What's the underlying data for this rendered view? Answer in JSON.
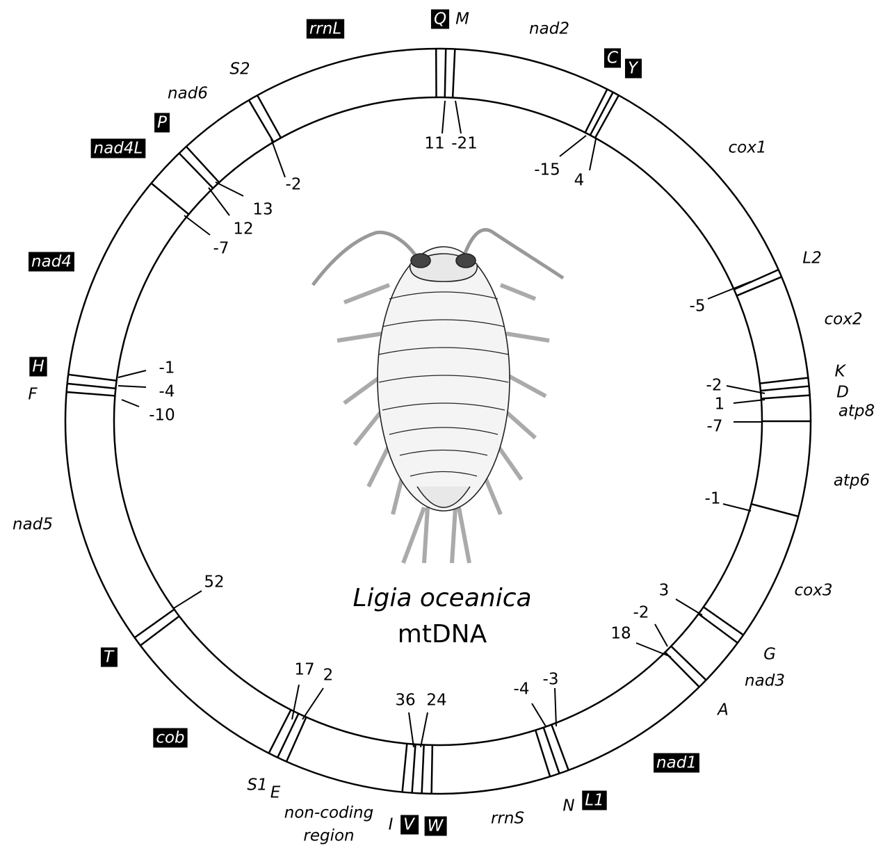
{
  "title": {
    "species": "Ligia oceanica",
    "subtitle": "mtDNA"
  },
  "genes": [
    {
      "label": "Q",
      "boxed": true
    },
    {
      "label": "M",
      "boxed": false
    },
    {
      "label": "nad2",
      "boxed": false
    },
    {
      "label": "C",
      "boxed": true
    },
    {
      "label": "Y",
      "boxed": true
    },
    {
      "label": "cox1",
      "boxed": false
    },
    {
      "label": "L2",
      "boxed": false
    },
    {
      "label": "cox2",
      "boxed": false
    },
    {
      "label": "K",
      "boxed": false
    },
    {
      "label": "D",
      "boxed": false
    },
    {
      "label": "atp8",
      "boxed": false
    },
    {
      "label": "atp6",
      "boxed": false
    },
    {
      "label": "cox3",
      "boxed": false
    },
    {
      "label": "G",
      "boxed": false
    },
    {
      "label": "nad3",
      "boxed": false
    },
    {
      "label": "A",
      "boxed": false
    },
    {
      "label": "nad1",
      "boxed": true
    },
    {
      "label": "L1",
      "boxed": true
    },
    {
      "label": "N",
      "boxed": false
    },
    {
      "label": "rrnS",
      "boxed": false
    },
    {
      "label": "W",
      "boxed": true
    },
    {
      "label": "V",
      "boxed": true
    },
    {
      "label": "I",
      "boxed": false
    },
    {
      "label": "non-coding",
      "boxed": false
    },
    {
      "label": "region",
      "boxed": false
    },
    {
      "label": "E",
      "boxed": false
    },
    {
      "label": "S1",
      "boxed": false
    },
    {
      "label": "cob",
      "boxed": true
    },
    {
      "label": "T",
      "boxed": true
    },
    {
      "label": "nad5",
      "boxed": false
    },
    {
      "label": "F",
      "boxed": false
    },
    {
      "label": "H",
      "boxed": true
    },
    {
      "label": "nad4",
      "boxed": true
    },
    {
      "label": "nad4L",
      "boxed": true
    },
    {
      "label": "P",
      "boxed": true
    },
    {
      "label": "nad6",
      "boxed": false
    },
    {
      "label": "S2",
      "boxed": false
    },
    {
      "label": "rrnL",
      "boxed": true
    }
  ],
  "spacers": [
    11,
    -21,
    -15,
    4,
    -5,
    -2,
    1,
    -7,
    -1,
    3,
    -2,
    18,
    -3,
    -4,
    24,
    36,
    2,
    17,
    52,
    -10,
    -4,
    -1,
    -7,
    12,
    13,
    -2
  ]
}
